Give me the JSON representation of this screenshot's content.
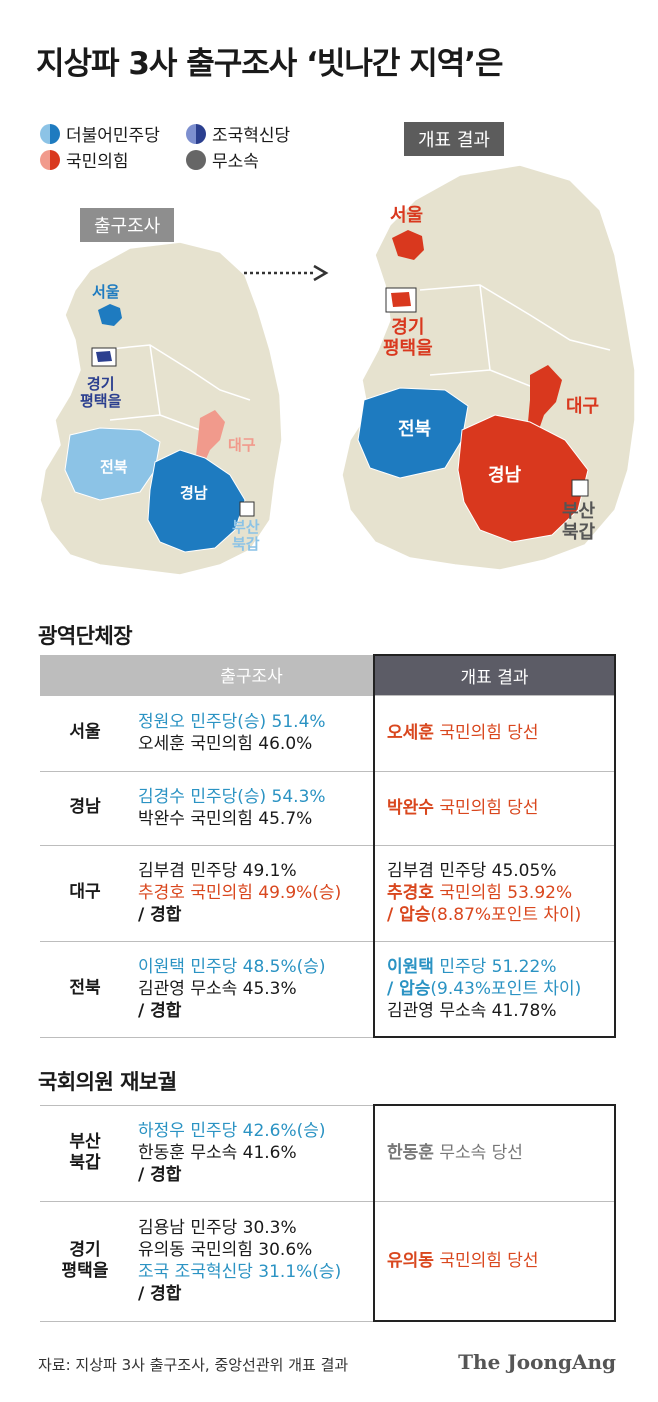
{
  "title": "지상파 3사 출구조사 ‘빗나간 지역’은",
  "legend": {
    "dem": "더불어민주당",
    "cho": "조국혁신당",
    "ppp": "국민의힘",
    "ind": "무소속"
  },
  "colors": {
    "dem": "#1e7bc0",
    "dem_light": "#8cc3e6",
    "ppp": "#d9381e",
    "ppp_light": "#f19a8c",
    "cho": "#2b3f8f",
    "ind": "#666666",
    "land": "#e6e2cf"
  },
  "map_exit": {
    "tag": "출구조사",
    "seoul": "서울",
    "gyeonggi": "경기\n평택을",
    "daegu": "대구",
    "jeonbuk": "전북",
    "gyeongnam": "경남",
    "busan": "부산\n북갑"
  },
  "map_result": {
    "tag": "개표 결과",
    "seoul": "서울",
    "gyeonggi": "경기\n평택을",
    "daegu": "대구",
    "jeonbuk": "전북",
    "gyeongnam": "경남",
    "busan": "부산\n북갑"
  },
  "section1": "광역단체장",
  "section2": "국회의원 재보궐",
  "table_headers": {
    "exit": "출구조사",
    "result": "개표 결과"
  },
  "governors": [
    {
      "region": "서울",
      "exit1": "정원오 민주당(승) 51.4%",
      "exit2": "오세훈 국민의힘 46.0%",
      "res_name": "오세훈",
      "res_rest": " 국민의힘 당선"
    },
    {
      "region": "경남",
      "exit1": "김경수 민주당(승) 54.3%",
      "exit2": "박완수 국민의힘 45.7%",
      "res_name": "박완수",
      "res_rest": " 국민의힘 당선"
    },
    {
      "region": "대구",
      "exit1": "김부겸 민주당 49.1%",
      "exit2_name": "추경호",
      "exit2_rest": " 국민의힘 49.9%(승)",
      "exit3": "/ 경합",
      "res1": "김부겸 민주당 45.05%",
      "res2_name": "추경호",
      "res2_rest": " 국민의힘 53.92%",
      "res3_bold": "/ 압승",
      "res3_rest": "(8.87%포인트 차이)"
    },
    {
      "region": "전북",
      "exit1": "이원택 민주당 48.5%(승)",
      "exit2": "김관영 무소속 45.3%",
      "exit3": "/ 경합",
      "res1_name": "이원택",
      "res1_rest": " 민주당 51.22%",
      "res2_bold": "/ 압승",
      "res2_rest": "(9.43%포인트 차이)",
      "res3": "김관영 무소속 41.78%"
    }
  ],
  "byelections": [
    {
      "region1": "부산",
      "region2": "북갑",
      "exit1": "하정우 민주당 42.6%(승)",
      "exit2": "한동훈 무소속 41.6%",
      "exit3": "/ 경합",
      "res_name": "한동훈",
      "res_rest": " 무소속 당선"
    },
    {
      "region1": "경기",
      "region2": "평택을",
      "exit1": "김용남 민주당 30.3%",
      "exit2": "유의동 국민의힘 30.6%",
      "exit3": "조국 조국혁신당 31.1%(승)",
      "exit4": "/ 경합",
      "res_name": "유의동",
      "res_rest": " 국민의힘 당선"
    }
  ],
  "footer": "자료: 지상파 3사 출구조사, 중앙선관위 개표 결과",
  "logo": "The JoongAng"
}
